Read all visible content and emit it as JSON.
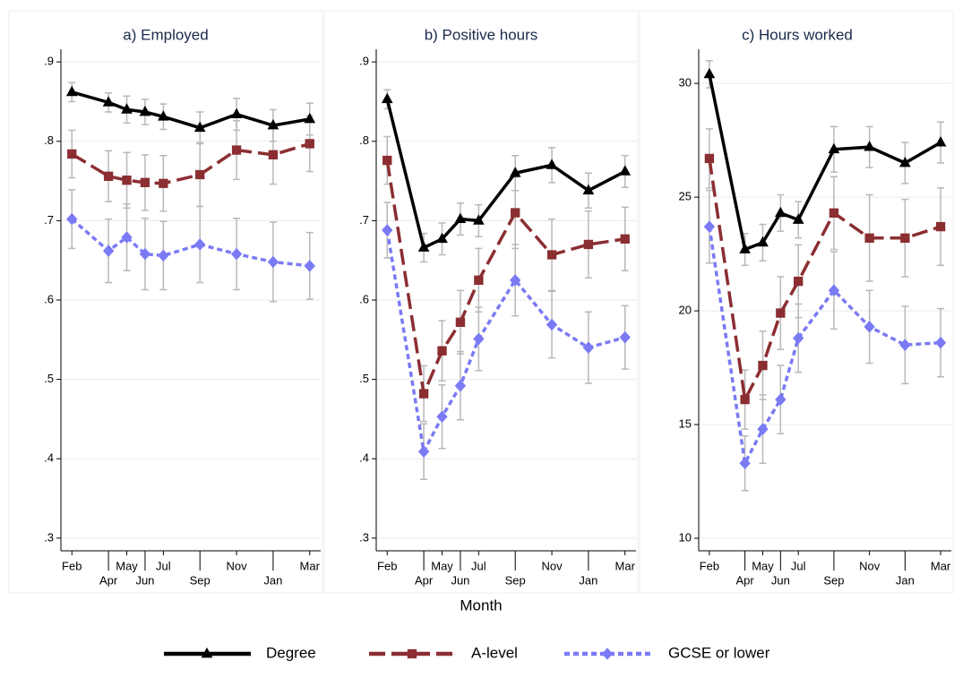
{
  "chart_data": [
    {
      "type": "line",
      "title": "a) Employed",
      "x": [
        0,
        2,
        3,
        4,
        5,
        7,
        9,
        11,
        13
      ],
      "xlim": [
        -0.6,
        13.6
      ],
      "xticks": [
        {
          "value": 0,
          "label": "Feb"
        },
        {
          "value": 2,
          "label": "Apr"
        },
        {
          "value": 3,
          "label": "May"
        },
        {
          "value": 4,
          "label": "Jun"
        },
        {
          "value": 5,
          "label": "Jul"
        },
        {
          "value": 7,
          "label": "Sep"
        },
        {
          "value": 9,
          "label": "Nov"
        },
        {
          "value": 11,
          "label": "Jan"
        },
        {
          "value": 13,
          "label": "Mar"
        }
      ],
      "ylim": [
        0.284,
        0.916
      ],
      "yticks": [
        {
          "value": 0.3,
          "label": ".3"
        },
        {
          "value": 0.4,
          "label": ".4"
        },
        {
          "value": 0.5,
          "label": ".5"
        },
        {
          "value": 0.6,
          "label": ".6"
        },
        {
          "value": 0.7,
          "label": ".7"
        },
        {
          "value": 0.8,
          "label": ".8"
        },
        {
          "value": 0.9,
          "label": ".9"
        }
      ],
      "grid": true,
      "series": [
        {
          "name": "Degree",
          "color": "#000000",
          "marker": "triangle",
          "line_style": "solid",
          "values": [
            0.862,
            0.849,
            0.84,
            0.837,
            0.831,
            0.817,
            0.834,
            0.82,
            0.828
          ],
          "errors": [
            0.012,
            0.012,
            0.017,
            0.016,
            0.016,
            0.02,
            0.02,
            0.02,
            0.02
          ]
        },
        {
          "name": "A-level",
          "color": "#8b2e32",
          "marker": "square",
          "line_style": "dash",
          "values": [
            0.784,
            0.756,
            0.751,
            0.748,
            0.747,
            0.758,
            0.789,
            0.783,
            0.797
          ],
          "errors": [
            0.03,
            0.032,
            0.035,
            0.035,
            0.035,
            0.04,
            0.037,
            0.037,
            0.035
          ]
        },
        {
          "name": "GCSE or lower",
          "color": "#7a7af5",
          "marker": "diamond",
          "line_style": "shortdash",
          "values": [
            0.702,
            0.662,
            0.679,
            0.658,
            0.656,
            0.67,
            0.658,
            0.648,
            0.643
          ],
          "errors": [
            0.037,
            0.04,
            0.042,
            0.045,
            0.043,
            0.048,
            0.045,
            0.05,
            0.042
          ]
        }
      ]
    },
    {
      "type": "line",
      "title": "b) Positive hours",
      "xlabel": "Month",
      "x": [
        0,
        2,
        3,
        4,
        5,
        7,
        9,
        11,
        13
      ],
      "xlim": [
        -0.6,
        13.6
      ],
      "xticks": [
        {
          "value": 0,
          "label": "Feb"
        },
        {
          "value": 2,
          "label": "Apr"
        },
        {
          "value": 3,
          "label": "May"
        },
        {
          "value": 4,
          "label": "Jun"
        },
        {
          "value": 5,
          "label": "Jul"
        },
        {
          "value": 7,
          "label": "Sep"
        },
        {
          "value": 9,
          "label": "Nov"
        },
        {
          "value": 11,
          "label": "Jan"
        },
        {
          "value": 13,
          "label": "Mar"
        }
      ],
      "ylim": [
        0.284,
        0.916
      ],
      "yticks": [
        {
          "value": 0.3,
          "label": ".3"
        },
        {
          "value": 0.4,
          "label": ".4"
        },
        {
          "value": 0.5,
          "label": ".5"
        },
        {
          "value": 0.6,
          "label": ".6"
        },
        {
          "value": 0.7,
          "label": ".7"
        },
        {
          "value": 0.8,
          "label": ".8"
        },
        {
          "value": 0.9,
          "label": ".9"
        }
      ],
      "grid": true,
      "series": [
        {
          "name": "Degree",
          "color": "#000000",
          "marker": "triangle",
          "line_style": "solid",
          "values": [
            0.853,
            0.666,
            0.677,
            0.702,
            0.7,
            0.76,
            0.77,
            0.738,
            0.762
          ],
          "errors": [
            0.012,
            0.018,
            0.02,
            0.02,
            0.02,
            0.022,
            0.022,
            0.022,
            0.02
          ]
        },
        {
          "name": "A-level",
          "color": "#8b2e32",
          "marker": "square",
          "line_style": "dash",
          "values": [
            0.776,
            0.482,
            0.536,
            0.572,
            0.625,
            0.71,
            0.657,
            0.67,
            0.677
          ],
          "errors": [
            0.03,
            0.035,
            0.038,
            0.04,
            0.04,
            0.045,
            0.045,
            0.042,
            0.04
          ]
        },
        {
          "name": "GCSE or lower",
          "color": "#7a7af5",
          "marker": "diamond",
          "line_style": "shortdash",
          "values": [
            0.688,
            0.409,
            0.453,
            0.492,
            0.551,
            0.625,
            0.569,
            0.54,
            0.553
          ],
          "errors": [
            0.035,
            0.035,
            0.04,
            0.043,
            0.04,
            0.045,
            0.042,
            0.045,
            0.04
          ]
        }
      ]
    },
    {
      "type": "line",
      "title": "c) Hours worked",
      "x": [
        0,
        2,
        3,
        4,
        5,
        7,
        9,
        11,
        13
      ],
      "xlim": [
        -0.6,
        13.6
      ],
      "xticks": [
        {
          "value": 0,
          "label": "Feb"
        },
        {
          "value": 2,
          "label": "Apr"
        },
        {
          "value": 3,
          "label": "May"
        },
        {
          "value": 4,
          "label": "Jun"
        },
        {
          "value": 5,
          "label": "Jul"
        },
        {
          "value": 7,
          "label": "Sep"
        },
        {
          "value": 9,
          "label": "Nov"
        },
        {
          "value": 11,
          "label": "Jan"
        },
        {
          "value": 13,
          "label": "Mar"
        }
      ],
      "ylim": [
        9.45,
        31.5
      ],
      "yticks": [
        10,
        15,
        20,
        25,
        30
      ],
      "grid": true,
      "series": [
        {
          "name": "Degree",
          "color": "#000000",
          "marker": "triangle",
          "line_style": "solid",
          "values": [
            30.4,
            22.7,
            23.0,
            24.3,
            24.0,
            27.1,
            27.2,
            26.5,
            27.4
          ],
          "errors": [
            0.6,
            0.7,
            0.8,
            0.8,
            0.8,
            1.0,
            0.9,
            0.9,
            0.9
          ]
        },
        {
          "name": "A-level",
          "color": "#8b2e32",
          "marker": "square",
          "line_style": "dash",
          "values": [
            26.7,
            16.1,
            17.6,
            19.9,
            21.3,
            24.3,
            23.2,
            23.2,
            23.7
          ],
          "errors": [
            1.3,
            1.3,
            1.5,
            1.6,
            1.6,
            1.6,
            1.9,
            1.7,
            1.7
          ]
        },
        {
          "name": "GCSE or lower",
          "color": "#7a7af5",
          "marker": "diamond",
          "line_style": "shortdash",
          "values": [
            23.7,
            13.3,
            14.8,
            16.1,
            18.8,
            20.9,
            19.3,
            18.5,
            18.6
          ],
          "errors": [
            1.6,
            1.2,
            1.5,
            1.5,
            1.5,
            1.7,
            1.6,
            1.7,
            1.5
          ]
        }
      ]
    }
  ]
}
